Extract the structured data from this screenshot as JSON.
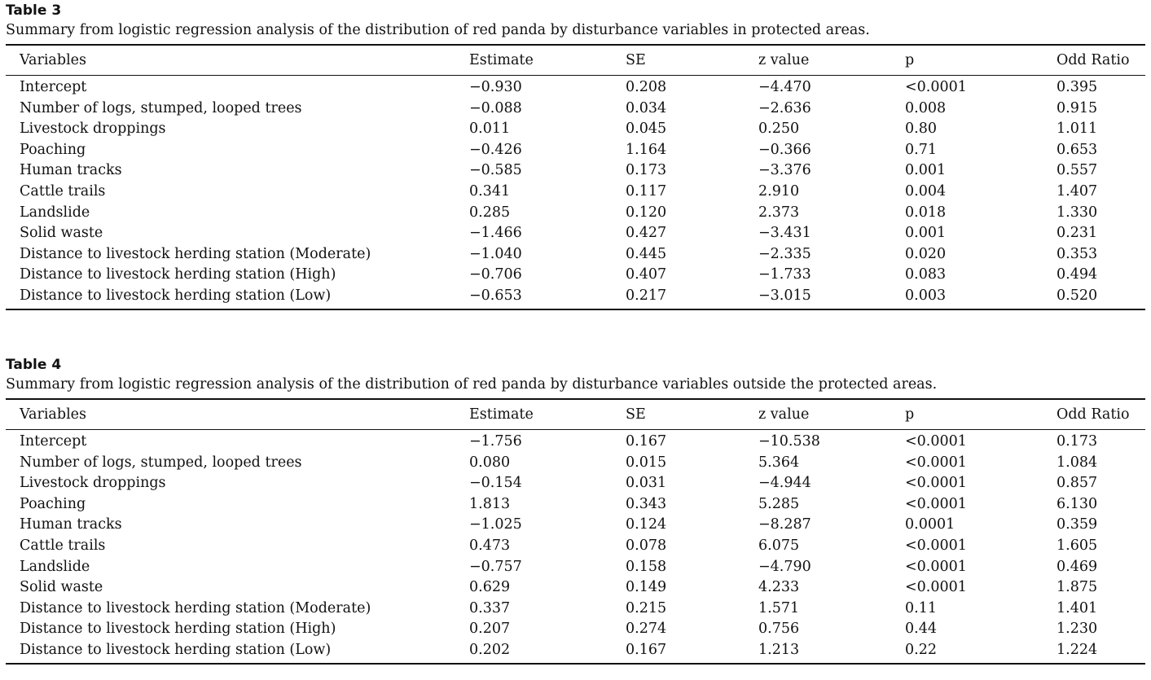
{
  "tables": [
    {
      "label": "Table 3",
      "caption": "Summary from logistic regression analysis of the distribution of red panda by disturbance variables in protected areas.",
      "columns": [
        "Variables",
        "Estimate",
        "SE",
        "z value",
        "p",
        "Odd Ratio"
      ],
      "rows": [
        [
          "Intercept",
          "−0.930",
          "0.208",
          "−4.470",
          "<0.0001",
          "0.395"
        ],
        [
          "Number of logs, stumped, looped trees",
          "−0.088",
          "0.034",
          "−2.636",
          "0.008",
          "0.915"
        ],
        [
          "Livestock droppings",
          "0.011",
          "0.045",
          "0.250",
          "0.80",
          "1.011"
        ],
        [
          "Poaching",
          "−0.426",
          "1.164",
          "−0.366",
          "0.71",
          "0.653"
        ],
        [
          "Human tracks",
          "−0.585",
          "0.173",
          "−3.376",
          "0.001",
          "0.557"
        ],
        [
          "Cattle trails",
          "0.341",
          "0.117",
          "2.910",
          "0.004",
          "1.407"
        ],
        [
          "Landslide",
          "0.285",
          "0.120",
          "2.373",
          "0.018",
          "1.330"
        ],
        [
          "Solid waste",
          "−1.466",
          "0.427",
          "−3.431",
          "0.001",
          "0.231"
        ],
        [
          "Distance to livestock herding station (Moderate)",
          "−1.040",
          "0.445",
          "−2.335",
          "0.020",
          "0.353"
        ],
        [
          "Distance to livestock herding station (High)",
          "−0.706",
          "0.407",
          "−1.733",
          "0.083",
          "0.494"
        ],
        [
          "Distance to livestock herding station (Low)",
          "−0.653",
          "0.217",
          "−3.015",
          "0.003",
          "0.520"
        ]
      ]
    },
    {
      "label": "Table 4",
      "caption": "Summary from logistic regression analysis of the distribution of red panda by disturbance variables outside the protected areas.",
      "columns": [
        "Variables",
        "Estimate",
        "SE",
        "z value",
        "p",
        "Odd Ratio"
      ],
      "rows": [
        [
          "Intercept",
          "−1.756",
          "0.167",
          "−10.538",
          "<0.0001",
          "0.173"
        ],
        [
          "Number of logs, stumped, looped trees",
          "0.080",
          "0.015",
          "5.364",
          "<0.0001",
          "1.084"
        ],
        [
          "Livestock droppings",
          "−0.154",
          "0.031",
          "−4.944",
          "<0.0001",
          "0.857"
        ],
        [
          "Poaching",
          "1.813",
          "0.343",
          "5.285",
          "<0.0001",
          "6.130"
        ],
        [
          "Human tracks",
          "−1.025",
          "0.124",
          "−8.287",
          "0.0001",
          "0.359"
        ],
        [
          "Cattle trails",
          "0.473",
          "0.078",
          "6.075",
          "<0.0001",
          "1.605"
        ],
        [
          "Landslide",
          "−0.757",
          "0.158",
          "−4.790",
          "<0.0001",
          "0.469"
        ],
        [
          "Solid waste",
          "0.629",
          "0.149",
          "4.233",
          "<0.0001",
          "1.875"
        ],
        [
          "Distance to livestock herding station (Moderate)",
          "0.337",
          "0.215",
          "1.571",
          "0.11",
          "1.401"
        ],
        [
          "Distance to livestock herding station (High)",
          "0.207",
          "0.274",
          "0.756",
          "0.44",
          "1.230"
        ],
        [
          "Distance to livestock herding station (Low)",
          "0.202",
          "0.167",
          "1.213",
          "0.22",
          "1.224"
        ]
      ]
    }
  ]
}
